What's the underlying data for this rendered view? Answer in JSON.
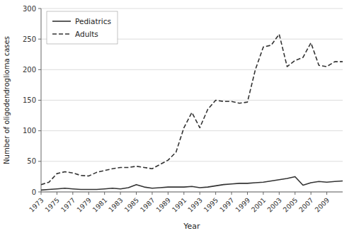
{
  "chart_data": {
    "type": "line",
    "x_label": "Year",
    "y_label": "Number of oligodendroglioma cases",
    "x": [
      1973,
      1974,
      1975,
      1976,
      1977,
      1978,
      1979,
      1980,
      1981,
      1982,
      1983,
      1984,
      1985,
      1986,
      1987,
      1988,
      1989,
      1990,
      1991,
      1992,
      1993,
      1994,
      1995,
      1996,
      1997,
      1998,
      1999,
      2000,
      2001,
      2002,
      2003,
      2004,
      2005,
      2006,
      2007,
      2008,
      2009,
      2010,
      2011
    ],
    "series": [
      {
        "name": "Pediatrics",
        "color": "#333333",
        "line_style": "solid",
        "values": [
          3,
          4,
          5,
          6,
          5,
          4,
          4,
          4,
          5,
          6,
          5,
          7,
          12,
          8,
          6,
          7,
          8,
          8,
          8,
          9,
          7,
          8,
          10,
          12,
          13,
          14,
          14,
          15,
          16,
          18,
          20,
          22,
          25,
          11,
          15,
          17,
          16,
          17,
          18
        ]
      },
      {
        "name": "Adults",
        "color": "#333333",
        "line_style": "dashed",
        "values": [
          12,
          16,
          30,
          33,
          31,
          27,
          26,
          32,
          35,
          38,
          40,
          40,
          42,
          40,
          38,
          45,
          52,
          65,
          105,
          130,
          105,
          135,
          150,
          148,
          148,
          145,
          147,
          200,
          237,
          240,
          258,
          205,
          215,
          220,
          244,
          207,
          205,
          213,
          213
        ]
      }
    ],
    "xlim": [
      1973,
      2011
    ],
    "xticks": [
      1973,
      1975,
      1977,
      1979,
      1981,
      1983,
      1985,
      1987,
      1989,
      1991,
      1993,
      1995,
      1997,
      1999,
      2001,
      2003,
      2005,
      2007,
      2009
    ],
    "ylim": [
      0,
      300
    ],
    "yticks": [
      0,
      50,
      100,
      150,
      200,
      250,
      300
    ],
    "grid": true,
    "legend": "upper left"
  }
}
